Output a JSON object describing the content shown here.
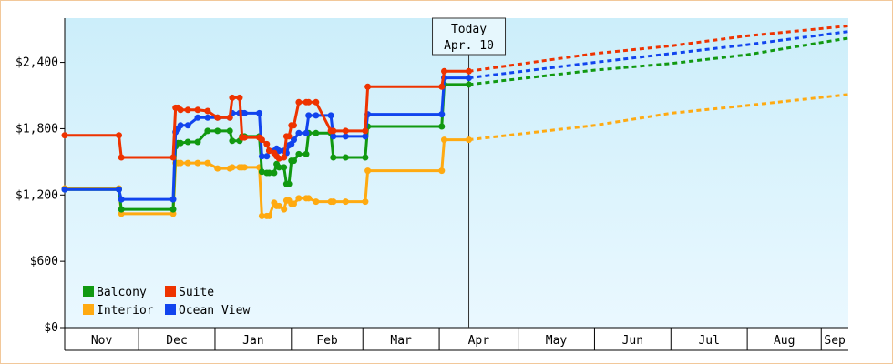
{
  "chart_data": {
    "type": "line",
    "title": "",
    "xlabel": "",
    "ylabel": "",
    "ylim": [
      0,
      2800
    ],
    "y_ticks": [
      {
        "value": 0,
        "label": "$0"
      },
      {
        "value": 600,
        "label": "$600"
      },
      {
        "value": 1200,
        "label": "$1,200"
      },
      {
        "value": 1800,
        "label": "$1,800"
      },
      {
        "value": 2400,
        "label": "$2,400"
      }
    ],
    "x_range": [
      "2023-10-29",
      "2024-09-11"
    ],
    "months": [
      {
        "label": "Nov",
        "start": "2023-10-29",
        "end": "2023-11-28"
      },
      {
        "label": "Dec",
        "start": "2023-11-28",
        "end": "2023-12-29"
      },
      {
        "label": "Jan",
        "start": "2023-12-29",
        "end": "2024-01-29"
      },
      {
        "label": "Feb",
        "start": "2024-01-29",
        "end": "2024-02-27"
      },
      {
        "label": "Mar",
        "start": "2024-02-27",
        "end": "2024-03-29"
      },
      {
        "label": "Apr",
        "start": "2024-03-29",
        "end": "2024-04-30"
      },
      {
        "label": "May",
        "start": "2024-04-30",
        "end": "2024-05-31"
      },
      {
        "label": "Jun",
        "start": "2024-05-31",
        "end": "2024-07-01"
      },
      {
        "label": "Jul",
        "start": "2024-07-01",
        "end": "2024-08-01"
      },
      {
        "label": "Aug",
        "start": "2024-08-01",
        "end": "2024-08-31"
      },
      {
        "label": "Sep",
        "start": "2024-08-31",
        "end": "2024-09-11"
      }
    ],
    "today": {
      "line1": "Today",
      "line2": "Apr. 10",
      "date": "2024-04-10"
    },
    "series": [
      {
        "name": "Balcony",
        "color": "#119911",
        "points": [
          [
            "2023-10-29",
            1250
          ],
          [
            "2023-11-20",
            1250
          ],
          [
            "2023-11-21",
            1070
          ],
          [
            "2023-12-12",
            1070
          ],
          [
            "2023-12-13",
            1640
          ],
          [
            "2023-12-14",
            1670
          ],
          [
            "2023-12-15",
            1670
          ],
          [
            "2023-12-18",
            1680
          ],
          [
            "2023-12-22",
            1680
          ],
          [
            "2023-12-26",
            1780
          ],
          [
            "2023-12-30",
            1780
          ],
          [
            "2024-01-04",
            1780
          ],
          [
            "2024-01-05",
            1690
          ],
          [
            "2024-01-08",
            1690
          ],
          [
            "2024-01-09",
            1730
          ],
          [
            "2024-01-10",
            1730
          ],
          [
            "2024-01-16",
            1730
          ],
          [
            "2024-01-17",
            1410
          ],
          [
            "2024-01-19",
            1400
          ],
          [
            "2024-01-20",
            1400
          ],
          [
            "2024-01-22",
            1400
          ],
          [
            "2024-01-23",
            1480
          ],
          [
            "2024-01-24",
            1450
          ],
          [
            "2024-01-26",
            1450
          ],
          [
            "2024-01-27",
            1300
          ],
          [
            "2024-01-28",
            1300
          ],
          [
            "2024-01-29",
            1510
          ],
          [
            "2024-01-30",
            1510
          ],
          [
            "2024-02-01",
            1570
          ],
          [
            "2024-02-04",
            1570
          ],
          [
            "2024-02-05",
            1760
          ],
          [
            "2024-02-08",
            1760
          ],
          [
            "2024-02-14",
            1760
          ],
          [
            "2024-02-15",
            1540
          ],
          [
            "2024-02-20",
            1540
          ],
          [
            "2024-02-28",
            1540
          ],
          [
            "2024-02-29",
            1820
          ],
          [
            "2024-03-30",
            1820
          ],
          [
            "2024-03-31",
            2200
          ],
          [
            "2024-04-10",
            2200
          ],
          [
            "2024-05-31",
            2330
          ],
          [
            "2024-07-01",
            2390
          ],
          [
            "2024-08-01",
            2470
          ],
          [
            "2024-09-11",
            2620
          ]
        ]
      },
      {
        "name": "Suite",
        "color": "#ee3300",
        "points": [
          [
            "2023-10-29",
            1740
          ],
          [
            "2023-11-20",
            1740
          ],
          [
            "2023-11-21",
            1540
          ],
          [
            "2023-12-12",
            1540
          ],
          [
            "2023-12-13",
            1990
          ],
          [
            "2023-12-14",
            1990
          ],
          [
            "2023-12-15",
            1970
          ],
          [
            "2023-12-18",
            1970
          ],
          [
            "2023-12-22",
            1970
          ],
          [
            "2023-12-26",
            1960
          ],
          [
            "2023-12-30",
            1900
          ],
          [
            "2024-01-04",
            1900
          ],
          [
            "2024-01-05",
            2080
          ],
          [
            "2024-01-08",
            2080
          ],
          [
            "2024-01-09",
            1720
          ],
          [
            "2024-01-10",
            1720
          ],
          [
            "2024-01-16",
            1720
          ],
          [
            "2024-01-17",
            1700
          ],
          [
            "2024-01-19",
            1660
          ],
          [
            "2024-01-20",
            1600
          ],
          [
            "2024-01-22",
            1580
          ],
          [
            "2024-01-23",
            1550
          ],
          [
            "2024-01-24",
            1530
          ],
          [
            "2024-01-26",
            1540
          ],
          [
            "2024-01-27",
            1730
          ],
          [
            "2024-01-28",
            1730
          ],
          [
            "2024-01-29",
            1830
          ],
          [
            "2024-01-30",
            1830
          ],
          [
            "2024-02-01",
            2040
          ],
          [
            "2024-02-04",
            2040
          ],
          [
            "2024-02-05",
            2040
          ],
          [
            "2024-02-08",
            2040
          ],
          [
            "2024-02-14",
            1780
          ],
          [
            "2024-02-15",
            1780
          ],
          [
            "2024-02-20",
            1780
          ],
          [
            "2024-02-28",
            1780
          ],
          [
            "2024-02-29",
            2180
          ],
          [
            "2024-03-30",
            2180
          ],
          [
            "2024-03-31",
            2320
          ],
          [
            "2024-04-10",
            2320
          ],
          [
            "2024-05-31",
            2480
          ],
          [
            "2024-07-01",
            2550
          ],
          [
            "2024-08-01",
            2640
          ],
          [
            "2024-09-11",
            2730
          ]
        ]
      },
      {
        "name": "Interior",
        "color": "#ffaa11",
        "points": [
          [
            "2023-10-29",
            1260
          ],
          [
            "2023-11-20",
            1260
          ],
          [
            "2023-11-21",
            1030
          ],
          [
            "2023-12-12",
            1030
          ],
          [
            "2023-12-13",
            1490
          ],
          [
            "2023-12-14",
            1490
          ],
          [
            "2023-12-15",
            1490
          ],
          [
            "2023-12-18",
            1490
          ],
          [
            "2023-12-22",
            1490
          ],
          [
            "2023-12-26",
            1490
          ],
          [
            "2023-12-30",
            1440
          ],
          [
            "2024-01-04",
            1440
          ],
          [
            "2024-01-05",
            1450
          ],
          [
            "2024-01-08",
            1450
          ],
          [
            "2024-01-09",
            1450
          ],
          [
            "2024-01-10",
            1450
          ],
          [
            "2024-01-16",
            1450
          ],
          [
            "2024-01-17",
            1010
          ],
          [
            "2024-01-19",
            1010
          ],
          [
            "2024-01-20",
            1010
          ],
          [
            "2024-01-22",
            1130
          ],
          [
            "2024-01-23",
            1100
          ],
          [
            "2024-01-24",
            1100
          ],
          [
            "2024-01-26",
            1070
          ],
          [
            "2024-01-27",
            1150
          ],
          [
            "2024-01-28",
            1150
          ],
          [
            "2024-01-29",
            1120
          ],
          [
            "2024-01-30",
            1120
          ],
          [
            "2024-02-01",
            1170
          ],
          [
            "2024-02-04",
            1170
          ],
          [
            "2024-02-05",
            1170
          ],
          [
            "2024-02-08",
            1140
          ],
          [
            "2024-02-14",
            1140
          ],
          [
            "2024-02-15",
            1140
          ],
          [
            "2024-02-20",
            1140
          ],
          [
            "2024-02-28",
            1140
          ],
          [
            "2024-02-29",
            1420
          ],
          [
            "2024-03-30",
            1420
          ],
          [
            "2024-03-31",
            1700
          ],
          [
            "2024-04-10",
            1700
          ],
          [
            "2024-05-31",
            1830
          ],
          [
            "2024-07-01",
            1940
          ],
          [
            "2024-08-01",
            2010
          ],
          [
            "2024-09-11",
            2110
          ]
        ]
      },
      {
        "name": "Ocean View",
        "color": "#1144ee",
        "points": [
          [
            "2023-10-29",
            1250
          ],
          [
            "2023-11-20",
            1250
          ],
          [
            "2023-11-21",
            1160
          ],
          [
            "2023-12-12",
            1160
          ],
          [
            "2023-12-13",
            1770
          ],
          [
            "2023-12-14",
            1800
          ],
          [
            "2023-12-15",
            1830
          ],
          [
            "2023-12-18",
            1830
          ],
          [
            "2023-12-22",
            1900
          ],
          [
            "2023-12-26",
            1900
          ],
          [
            "2023-12-30",
            1900
          ],
          [
            "2024-01-04",
            1900
          ],
          [
            "2024-01-05",
            1940
          ],
          [
            "2024-01-08",
            1940
          ],
          [
            "2024-01-09",
            1940
          ],
          [
            "2024-01-10",
            1940
          ],
          [
            "2024-01-16",
            1940
          ],
          [
            "2024-01-17",
            1550
          ],
          [
            "2024-01-19",
            1550
          ],
          [
            "2024-01-20",
            1600
          ],
          [
            "2024-01-22",
            1600
          ],
          [
            "2024-01-23",
            1620
          ],
          [
            "2024-01-24",
            1600
          ],
          [
            "2024-01-26",
            1600
          ],
          [
            "2024-01-27",
            1580
          ],
          [
            "2024-01-28",
            1650
          ],
          [
            "2024-01-29",
            1660
          ],
          [
            "2024-01-30",
            1700
          ],
          [
            "2024-02-01",
            1760
          ],
          [
            "2024-02-04",
            1760
          ],
          [
            "2024-02-05",
            1920
          ],
          [
            "2024-02-08",
            1920
          ],
          [
            "2024-02-14",
            1920
          ],
          [
            "2024-02-15",
            1730
          ],
          [
            "2024-02-20",
            1730
          ],
          [
            "2024-02-28",
            1730
          ],
          [
            "2024-02-29",
            1930
          ],
          [
            "2024-03-30",
            1930
          ],
          [
            "2024-03-31",
            2260
          ],
          [
            "2024-04-10",
            2260
          ],
          [
            "2024-05-31",
            2400
          ],
          [
            "2024-07-01",
            2480
          ],
          [
            "2024-08-01",
            2560
          ],
          [
            "2024-09-11",
            2680
          ]
        ]
      }
    ],
    "forecast_from": "2024-04-10",
    "legend": {
      "placement": "bottom-left",
      "columns": [
        [
          "Balcony",
          "Interior"
        ],
        [
          "Suite",
          "Ocean View"
        ]
      ]
    },
    "grid": false,
    "background": {
      "top": "#cceefa",
      "bottom": "#eaf8ff"
    },
    "frame_color": "#f2c89a"
  }
}
